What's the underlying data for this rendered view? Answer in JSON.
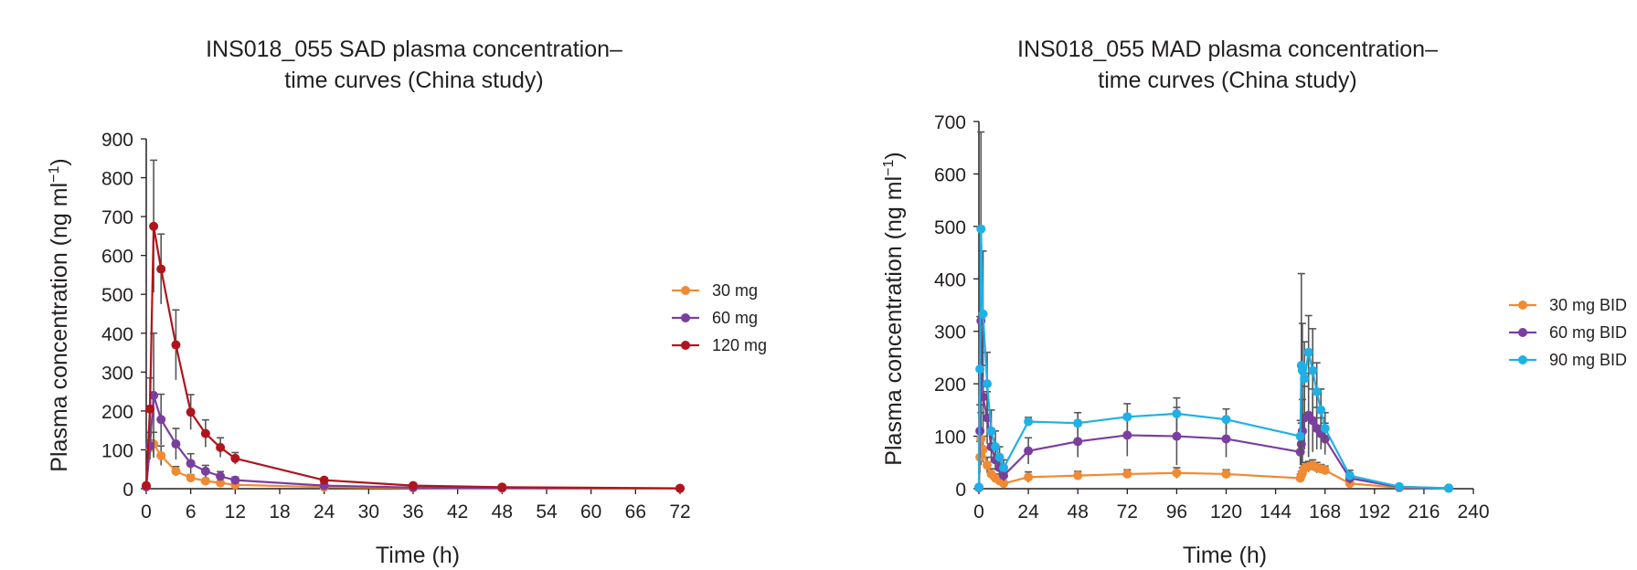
{
  "chart_data": [
    {
      "type": "line",
      "title_line1": "INS018_055 SAD plasma concentration–",
      "title_line2": "time curves (China study)",
      "xlabel": "Time (h)",
      "ylabel": "Plasma concentration (ng ml",
      "ylabel_sup": "−1",
      "ylabel_close": ")",
      "xlim": [
        0,
        72
      ],
      "ylim": [
        0,
        900
      ],
      "xticks": [
        0,
        6,
        12,
        18,
        24,
        30,
        36,
        42,
        48,
        54,
        60,
        66,
        72
      ],
      "yticks": [
        0,
        100,
        200,
        300,
        400,
        500,
        600,
        700,
        800,
        900
      ],
      "grid": false,
      "legend_position": "right",
      "series": [
        {
          "name": "30 mg",
          "color": "#f08a33",
          "x": [
            0,
            0.5,
            1,
            2,
            4,
            6,
            8,
            10,
            12,
            24,
            36,
            48,
            72
          ],
          "y": [
            5,
            105,
            115,
            85,
            45,
            28,
            20,
            15,
            10,
            4,
            2,
            1,
            0.5
          ],
          "err": [
            3,
            20,
            30,
            25,
            12,
            8,
            6,
            5,
            4,
            2,
            1,
            1,
            0
          ]
        },
        {
          "name": "60 mg",
          "color": "#7b3ea0",
          "x": [
            0,
            0.5,
            1,
            2,
            4,
            6,
            8,
            10,
            12,
            24,
            36,
            48,
            72
          ],
          "y": [
            5,
            110,
            240,
            178,
            115,
            65,
            45,
            32,
            22,
            8,
            3,
            2,
            1
          ],
          "err": [
            3,
            35,
            160,
            65,
            40,
            25,
            15,
            12,
            8,
            3,
            1,
            1,
            0
          ]
        },
        {
          "name": "120 mg",
          "color": "#b0141d",
          "x": [
            0,
            0.5,
            1,
            2,
            4,
            6,
            8,
            10,
            12,
            24,
            36,
            48,
            72
          ],
          "y": [
            8,
            205,
            675,
            565,
            370,
            197,
            142,
            106,
            78,
            22,
            8,
            4,
            1
          ],
          "err": [
            5,
            80,
            170,
            90,
            90,
            45,
            35,
            25,
            15,
            6,
            3,
            2,
            0
          ]
        }
      ]
    },
    {
      "type": "line",
      "title_line1": "INS018_055 MAD plasma concentration–",
      "title_line2": "time curves (China study)",
      "xlabel": "Time (h)",
      "ylabel": "Plasma concentration (ng ml",
      "ylabel_sup": "−1",
      "ylabel_close": ")",
      "xlim": [
        0,
        240
      ],
      "ylim": [
        0,
        700
      ],
      "xticks": [
        0,
        24,
        48,
        72,
        96,
        120,
        144,
        168,
        192,
        216,
        240
      ],
      "yticks": [
        0,
        100,
        200,
        300,
        400,
        500,
        600,
        700
      ],
      "grid": false,
      "legend_position": "right",
      "series": [
        {
          "name": "30 mg BID",
          "color": "#f08a33",
          "x": [
            0,
            0.5,
            1,
            2,
            4,
            6,
            8,
            10,
            12,
            24,
            48,
            72,
            96,
            120,
            156,
            156.5,
            157,
            158,
            160,
            162,
            164,
            166,
            168,
            180,
            204,
            228
          ],
          "y": [
            2,
            60,
            95,
            75,
            45,
            28,
            20,
            15,
            10,
            22,
            25,
            28,
            30,
            28,
            20,
            25,
            30,
            40,
            42,
            45,
            40,
            38,
            35,
            10,
            2,
            1
          ],
          "err": [
            2,
            30,
            50,
            25,
            15,
            10,
            8,
            6,
            5,
            10,
            8,
            8,
            10,
            8,
            8,
            8,
            10,
            10,
            10,
            10,
            10,
            8,
            8,
            5,
            1,
            0
          ]
        },
        {
          "name": "60 mg BID",
          "color": "#7b3ea0",
          "x": [
            0,
            0.5,
            1,
            2,
            4,
            6,
            8,
            10,
            12,
            24,
            48,
            72,
            96,
            120,
            156,
            156.5,
            157,
            158,
            160,
            162,
            164,
            166,
            168,
            180,
            204,
            228
          ],
          "y": [
            2,
            110,
            320,
            175,
            135,
            80,
            55,
            40,
            25,
            72,
            90,
            102,
            100,
            95,
            70,
            85,
            110,
            135,
            140,
            130,
            115,
            105,
            95,
            20,
            3,
            1
          ],
          "err": [
            2,
            50,
            180,
            60,
            50,
            30,
            20,
            15,
            10,
            25,
            30,
            40,
            55,
            35,
            25,
            40,
            60,
            60,
            80,
            60,
            40,
            30,
            30,
            10,
            2,
            0
          ]
        },
        {
          "name": "90 mg BID",
          "color": "#1fb0e6",
          "x": [
            0,
            0.5,
            1,
            2,
            4,
            6,
            8,
            10,
            12,
            24,
            48,
            72,
            96,
            120,
            156,
            156.5,
            157,
            158,
            160,
            162,
            164,
            166,
            168,
            180,
            204,
            228
          ],
          "y": [
            3,
            228,
            495,
            333,
            200,
            110,
            80,
            60,
            40,
            128,
            125,
            137,
            143,
            132,
            100,
            235,
            225,
            210,
            260,
            225,
            185,
            150,
            115,
            25,
            4,
            1
          ],
          "err": [
            3,
            100,
            185,
            120,
            60,
            40,
            30,
            20,
            15,
            8,
            20,
            25,
            30,
            20,
            30,
            175,
            90,
            70,
            70,
            80,
            55,
            40,
            30,
            10,
            2,
            0
          ]
        }
      ]
    }
  ]
}
